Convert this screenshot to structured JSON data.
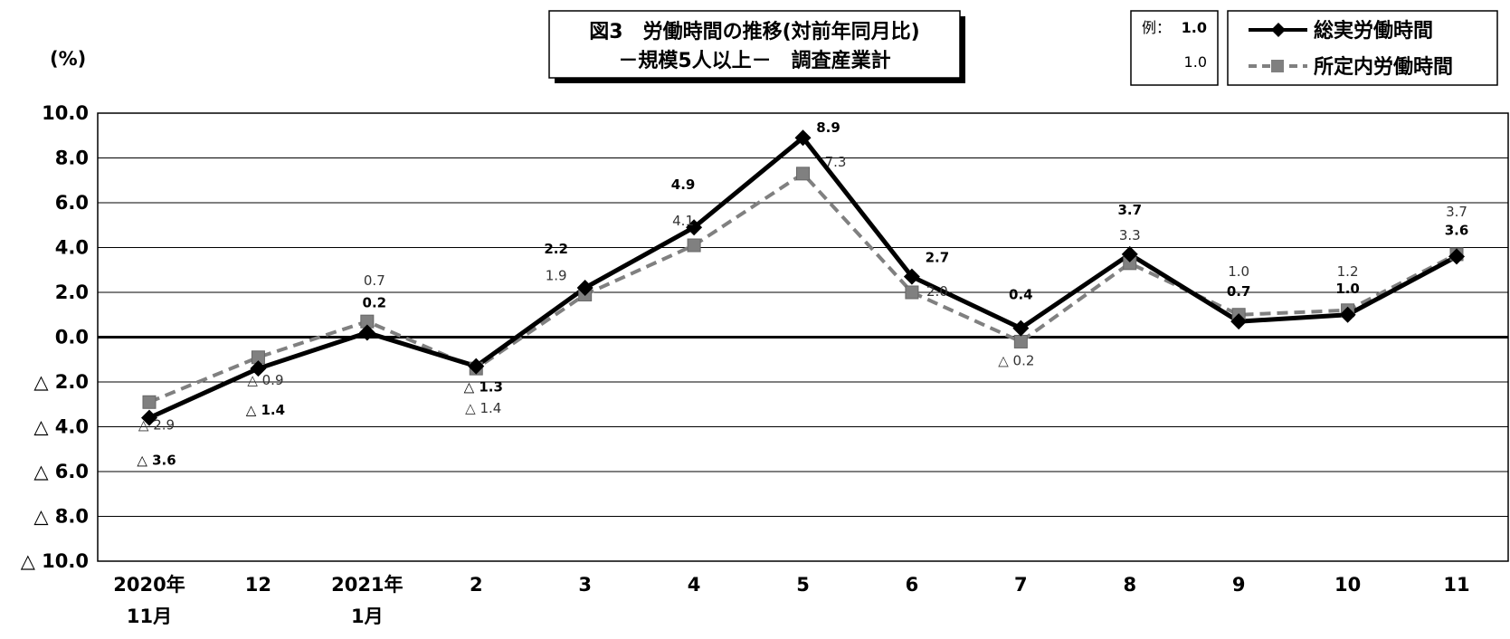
{
  "chart_data": {
    "type": "line",
    "title": "図3　労働時間の推移(対前年同月比)",
    "subtitle": "－規模5人以上－　調査産業計",
    "ylabel": "(%)",
    "xlabel": "",
    "ylim": [
      -10,
      10
    ],
    "yticks": [
      10,
      8,
      6,
      4,
      2,
      0,
      -2,
      -4,
      -6,
      -8,
      -10
    ],
    "ytick_labels": [
      "10.0",
      "8.0",
      "6.0",
      "4.0",
      "2.0",
      "0.0",
      "△ 2.0",
      "△ 4.0",
      "△ 6.0",
      "△ 8.0",
      "△ 10.0"
    ],
    "categories": [
      {
        "line1": "2020年",
        "line2": "11月"
      },
      {
        "line1": "12",
        "line2": ""
      },
      {
        "line1": "2021年",
        "line2": "1月"
      },
      {
        "line1": "2",
        "line2": ""
      },
      {
        "line1": "3",
        "line2": ""
      },
      {
        "line1": "4",
        "line2": ""
      },
      {
        "line1": "5",
        "line2": ""
      },
      {
        "line1": "6",
        "line2": ""
      },
      {
        "line1": "7",
        "line2": ""
      },
      {
        "line1": "8",
        "line2": ""
      },
      {
        "line1": "9",
        "line2": ""
      },
      {
        "line1": "10",
        "line2": ""
      },
      {
        "line1": "11",
        "line2": ""
      }
    ],
    "grid": true,
    "legend_position": "top-right",
    "series": [
      {
        "name": "総実労働時間",
        "style": "solid",
        "marker": "diamond",
        "color": "#000000",
        "values": [
          -3.6,
          -1.4,
          0.2,
          -1.3,
          2.2,
          4.9,
          8.9,
          2.7,
          0.4,
          3.7,
          0.7,
          1.0,
          3.6
        ],
        "labels": [
          "△ 3.6",
          "△ 1.4",
          "0.2",
          "△ 1.3",
          "2.2",
          "4.9",
          "8.9",
          "2.7",
          "0.4",
          "3.7",
          "0.7",
          "1.0",
          "3.6"
        ]
      },
      {
        "name": "所定内労働時間",
        "style": "dashed",
        "marker": "square",
        "color": "#808080",
        "values": [
          -2.9,
          -0.9,
          0.7,
          -1.4,
          1.9,
          4.1,
          7.3,
          2.0,
          -0.2,
          3.3,
          1.0,
          1.2,
          3.7
        ],
        "labels": [
          "△ 2.9",
          "△ 0.9",
          "0.7",
          "△ 1.4",
          "1.9",
          "4.1",
          "7.3",
          "2.0",
          "△ 0.2",
          "3.3",
          "1.0",
          "1.2",
          "3.7"
        ]
      }
    ],
    "example_box": {
      "prefix": "例：",
      "total": "1.0",
      "scheduled": "1.0"
    }
  }
}
